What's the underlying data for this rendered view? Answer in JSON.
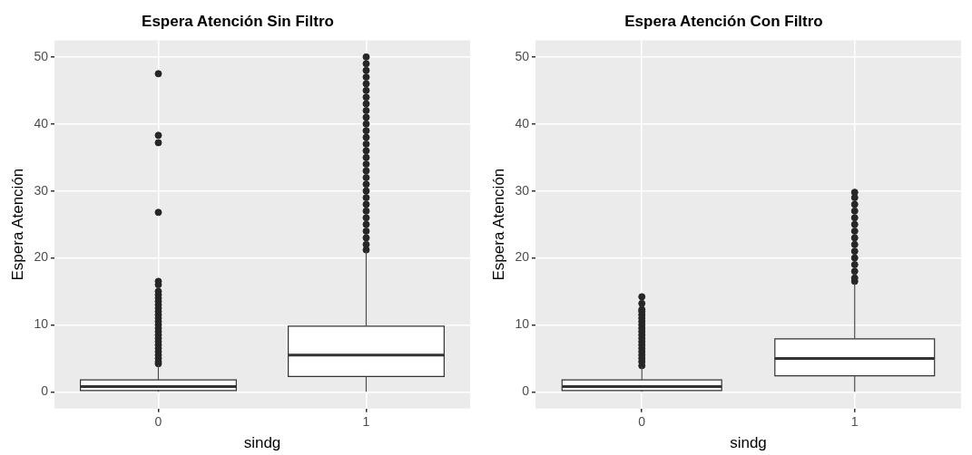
{
  "chart_data": [
    {
      "type": "box",
      "title": "Espera Atención Sin Filtro",
      "xlabel": "sindg",
      "ylabel": "Espera Atención",
      "categories": [
        "0",
        "1"
      ],
      "ylim": [
        -2.5,
        52.5
      ],
      "yticks": [
        0,
        10,
        20,
        30,
        40,
        50
      ],
      "grid": true,
      "legend": false,
      "marker": "circle",
      "boxes": [
        {
          "low": 0,
          "q1": 0.2,
          "median": 0.8,
          "q3": 1.8,
          "high": 4,
          "outliers": [
            4.2,
            4.5,
            5,
            5.5,
            6,
            6.5,
            7,
            7.5,
            8,
            8.5,
            9,
            9.5,
            10,
            10.5,
            11,
            11.5,
            12,
            12.5,
            13,
            13.5,
            14,
            14.5,
            15,
            16,
            16.5,
            26.8,
            37.2,
            38.3,
            47.5
          ]
        },
        {
          "low": 0,
          "q1": 2.3,
          "median": 5.5,
          "q3": 9.8,
          "high": 21,
          "outliers": [
            21.2,
            22,
            23,
            24,
            25,
            26,
            27,
            28,
            29,
            30,
            31,
            32,
            33,
            34,
            35,
            36,
            37,
            38,
            39,
            40,
            41,
            42,
            43,
            44,
            45,
            46,
            47,
            48,
            49,
            50
          ]
        }
      ]
    },
    {
      "type": "box",
      "title": "Espera Atención Con Filtro",
      "xlabel": "sindg",
      "ylabel": "Espera Atención",
      "categories": [
        "0",
        "1"
      ],
      "ylim": [
        -2.5,
        52.5
      ],
      "yticks": [
        0,
        10,
        20,
        30,
        40,
        50
      ],
      "grid": true,
      "legend": false,
      "marker": "circle",
      "boxes": [
        {
          "low": 0,
          "q1": 0.2,
          "median": 0.8,
          "q3": 1.8,
          "high": 3.7,
          "outliers": [
            3.9,
            4.5,
            5,
            5.5,
            6,
            6.5,
            7,
            7.5,
            8,
            8.5,
            9,
            9.5,
            10,
            10.5,
            11,
            11.5,
            12,
            12.3,
            13.2,
            14.2
          ]
        },
        {
          "low": 0,
          "q1": 2.4,
          "median": 5,
          "q3": 7.9,
          "high": 16.2,
          "outliers": [
            16.5,
            17,
            18,
            19,
            20,
            21,
            22,
            23,
            24,
            25,
            26,
            27,
            28,
            29,
            29.8
          ]
        }
      ]
    }
  ]
}
